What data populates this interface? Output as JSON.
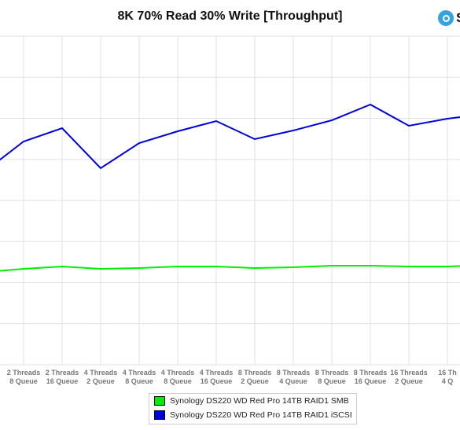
{
  "chart_data": {
    "type": "line",
    "title": "8K 70% Read 30% Write [Throughput]",
    "categories": [
      [
        "Threads",
        "Queue"
      ],
      [
        "2 Threads",
        "8 Queue"
      ],
      [
        "2 Threads",
        "16 Queue"
      ],
      [
        "4 Threads",
        "2 Queue"
      ],
      [
        "4 Threads",
        "8 Queue"
      ],
      [
        "4 Threads",
        "8 Queue"
      ],
      [
        "4 Threads",
        "16 Queue"
      ],
      [
        "8 Threads",
        "2 Queue"
      ],
      [
        "8 Threads",
        "4 Queue"
      ],
      [
        "8 Threads",
        "8 Queue"
      ],
      [
        "8 Threads",
        "16 Queue"
      ],
      [
        "16 Threads",
        "2 Queue"
      ],
      [
        "16 Th",
        "4 Q"
      ]
    ],
    "series": [
      {
        "name": "Synology DS220 WD Red Pro 14TB RAID1 SMB",
        "color": "#00ee00",
        "points": [
          [
            -0.6,
            345
          ],
          [
            -0.5,
            346
          ],
          [
            0.5,
            342
          ],
          [
            1.5,
            339
          ],
          [
            2.5,
            342
          ],
          [
            3.5,
            341
          ],
          [
            4.5,
            339
          ],
          [
            5.5,
            339
          ],
          [
            6.5,
            341
          ],
          [
            7.5,
            340
          ],
          [
            8.5,
            338
          ],
          [
            9.5,
            338
          ],
          [
            10.5,
            339
          ],
          [
            11.5,
            339
          ],
          [
            12,
            338
          ]
        ]
      },
      {
        "name": "Synology DS220 WD Red Pro 14TB RAID1 iSCSI",
        "color": "#0000dd",
        "points": [
          [
            -0.6,
            222
          ],
          [
            -0.5,
            215
          ],
          [
            -0.35,
            212
          ],
          [
            0.5,
            180
          ],
          [
            1.5,
            163
          ],
          [
            2.5,
            214
          ],
          [
            3.5,
            182
          ],
          [
            4.5,
            167
          ],
          [
            5.5,
            154
          ],
          [
            6.5,
            177
          ],
          [
            7.5,
            166
          ],
          [
            8.5,
            153
          ],
          [
            9.5,
            133
          ],
          [
            10.5,
            160
          ],
          [
            11.5,
            151
          ],
          [
            12,
            148
          ]
        ]
      }
    ],
    "legend": {
      "position": "bottom"
    },
    "grid": true,
    "x_grid_lines": 12,
    "y_grid_lines": 8
  },
  "brand": {
    "text": "S"
  }
}
